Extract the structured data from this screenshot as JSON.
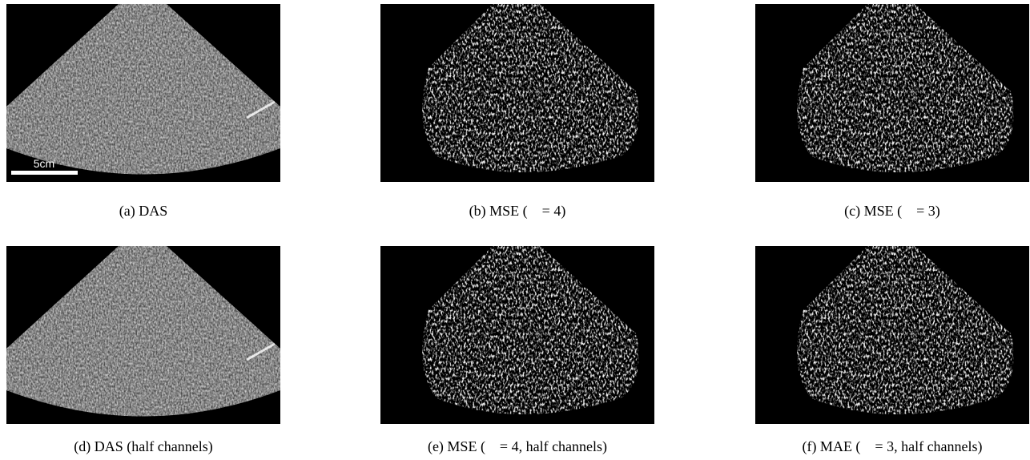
{
  "scale_bar": "5cm",
  "panels": [
    {
      "caption": "(a) DAS"
    },
    {
      "caption": "(b) MSE (    = 4)"
    },
    {
      "caption": "(c) MSE (    = 3)"
    },
    {
      "caption": "(d) DAS (half channels)"
    },
    {
      "caption": "(e) MSE (    = 4, half channels)"
    },
    {
      "caption": "(f) MAE (    = 3, half channels)"
    }
  ]
}
